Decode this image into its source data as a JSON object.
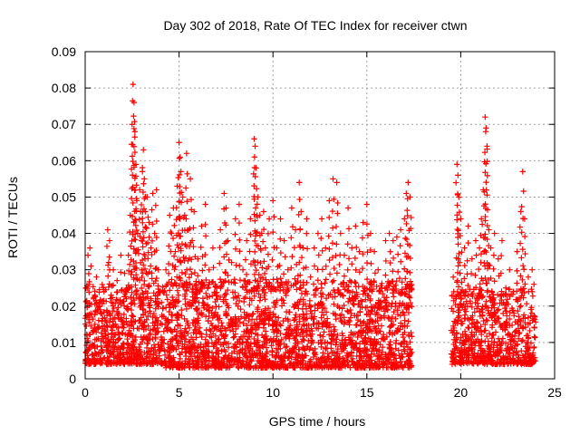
{
  "chart_data": {
    "type": "scatter",
    "title": "Day 302 of 2018, Rate Of TEC Index for receiver ctwn",
    "xlabel": "GPS time / hours",
    "ylabel": "ROTI / TECUs",
    "xlim": [
      0,
      25
    ],
    "ylim": [
      0,
      0.09
    ],
    "xticks": [
      0,
      5,
      10,
      15,
      20,
      25
    ],
    "xtick_labels": [
      "0",
      "5",
      "10",
      "15",
      "20",
      "25"
    ],
    "yticks": [
      0,
      0.01,
      0.02,
      0.03,
      0.04,
      0.05,
      0.06,
      0.07,
      0.08,
      0.09
    ],
    "ytick_labels": [
      "0",
      "0.01",
      "0.02",
      "0.03",
      "0.04",
      "0.05",
      "0.06",
      "0.07",
      "0.08",
      "0.09"
    ],
    "grid": true,
    "marker": "plus",
    "color": "#ff0000",
    "series": [
      {
        "points": [
          [
            0.05,
            0.025
          ],
          [
            0.1,
            0.012
          ],
          [
            0.15,
            0.034
          ],
          [
            0.2,
            0.026
          ],
          [
            0.25,
            0.036
          ],
          [
            0.3,
            0.018
          ],
          [
            0.35,
            0.009
          ],
          [
            0.45,
            0.022
          ],
          [
            0.5,
            0.014
          ],
          [
            0.6,
            0.028
          ],
          [
            0.7,
            0.011
          ],
          [
            0.8,
            0.019
          ],
          [
            0.9,
            0.008
          ],
          [
            1.0,
            0.024
          ],
          [
            1.1,
            0.016
          ],
          [
            1.2,
            0.041
          ],
          [
            1.25,
            0.032
          ],
          [
            1.3,
            0.038
          ],
          [
            1.4,
            0.021
          ],
          [
            1.5,
            0.03
          ],
          [
            1.6,
            0.012
          ],
          [
            1.7,
            0.027
          ],
          [
            1.8,
            0.018
          ],
          [
            1.9,
            0.034
          ],
          [
            2.0,
            0.015
          ],
          [
            2.1,
            0.029
          ],
          [
            2.2,
            0.022
          ],
          [
            2.3,
            0.034
          ],
          [
            2.4,
            0.045
          ],
          [
            2.5,
            0.07
          ],
          [
            2.55,
            0.081
          ],
          [
            2.6,
            0.076
          ],
          [
            2.65,
            0.068
          ],
          [
            2.7,
            0.059
          ],
          [
            2.75,
            0.049
          ],
          [
            2.8,
            0.04
          ],
          [
            2.9,
            0.052
          ],
          [
            3.0,
            0.038
          ],
          [
            3.05,
            0.057
          ],
          [
            3.1,
            0.063
          ],
          [
            3.15,
            0.055
          ],
          [
            3.2,
            0.046
          ],
          [
            3.3,
            0.05
          ],
          [
            3.4,
            0.043
          ],
          [
            3.5,
            0.036
          ],
          [
            3.6,
            0.051
          ],
          [
            3.7,
            0.04
          ],
          [
            3.8,
            0.052
          ],
          [
            3.9,
            0.03
          ],
          [
            4.0,
            0.024
          ],
          [
            4.1,
            0.015
          ],
          [
            4.3,
            0.03
          ],
          [
            4.5,
            0.045
          ],
          [
            4.6,
            0.04
          ],
          [
            4.7,
            0.047
          ],
          [
            4.8,
            0.035
          ],
          [
            4.9,
            0.053
          ],
          [
            5.0,
            0.065
          ],
          [
            5.05,
            0.061
          ],
          [
            5.1,
            0.057
          ],
          [
            5.2,
            0.05
          ],
          [
            5.3,
            0.045
          ],
          [
            5.4,
            0.062
          ],
          [
            5.5,
            0.041
          ],
          [
            5.6,
            0.055
          ],
          [
            5.7,
            0.038
          ],
          [
            5.8,
            0.046
          ],
          [
            6.0,
            0.033
          ],
          [
            6.2,
            0.042
          ],
          [
            6.4,
            0.048
          ],
          [
            6.6,
            0.03
          ],
          [
            6.8,
            0.036
          ],
          [
            7.0,
            0.025
          ],
          [
            7.2,
            0.041
          ],
          [
            7.4,
            0.051
          ],
          [
            7.5,
            0.047
          ],
          [
            7.6,
            0.038
          ],
          [
            7.8,
            0.032
          ],
          [
            8.0,
            0.044
          ],
          [
            8.2,
            0.048
          ],
          [
            8.4,
            0.03
          ],
          [
            8.6,
            0.038
          ],
          [
            8.8,
            0.044
          ],
          [
            9.0,
            0.066
          ],
          [
            9.05,
            0.064
          ],
          [
            9.1,
            0.058
          ],
          [
            9.2,
            0.05
          ],
          [
            9.3,
            0.045
          ],
          [
            9.4,
            0.04
          ],
          [
            9.5,
            0.046
          ],
          [
            9.6,
            0.036
          ],
          [
            9.8,
            0.044
          ],
          [
            10.0,
            0.049
          ],
          [
            10.2,
            0.036
          ],
          [
            10.4,
            0.044
          ],
          [
            10.6,
            0.038
          ],
          [
            10.8,
            0.03
          ],
          [
            11.0,
            0.047
          ],
          [
            11.2,
            0.041
          ],
          [
            11.4,
            0.054
          ],
          [
            11.5,
            0.046
          ],
          [
            11.6,
            0.036
          ],
          [
            11.8,
            0.044
          ],
          [
            12.0,
            0.028
          ],
          [
            12.2,
            0.036
          ],
          [
            12.4,
            0.04
          ],
          [
            12.6,
            0.044
          ],
          [
            12.8,
            0.036
          ],
          [
            13.0,
            0.049
          ],
          [
            13.2,
            0.055
          ],
          [
            13.4,
            0.054
          ],
          [
            13.6,
            0.04
          ],
          [
            13.8,
            0.034
          ],
          [
            14.0,
            0.047
          ],
          [
            14.2,
            0.036
          ],
          [
            14.4,
            0.042
          ],
          [
            14.6,
            0.035
          ],
          [
            14.8,
            0.043
          ],
          [
            15.0,
            0.048
          ],
          [
            15.2,
            0.04
          ],
          [
            15.4,
            0.035
          ],
          [
            15.6,
            0.03
          ],
          [
            15.8,
            0.025
          ],
          [
            16.0,
            0.038
          ],
          [
            16.2,
            0.04
          ],
          [
            16.4,
            0.038
          ],
          [
            16.6,
            0.039
          ],
          [
            16.8,
            0.041
          ],
          [
            17.0,
            0.044
          ],
          [
            17.1,
            0.051
          ],
          [
            17.2,
            0.054
          ],
          [
            17.3,
            0.05
          ],
          [
            19.6,
            0.028
          ],
          [
            19.8,
            0.059
          ],
          [
            19.85,
            0.056
          ],
          [
            19.9,
            0.05
          ],
          [
            20.0,
            0.044
          ],
          [
            20.2,
            0.036
          ],
          [
            20.4,
            0.042
          ],
          [
            20.6,
            0.033
          ],
          [
            20.8,
            0.038
          ],
          [
            21.0,
            0.036
          ],
          [
            21.1,
            0.044
          ],
          [
            21.2,
            0.052
          ],
          [
            21.3,
            0.072
          ],
          [
            21.35,
            0.069
          ],
          [
            21.4,
            0.064
          ],
          [
            21.5,
            0.041
          ],
          [
            21.6,
            0.036
          ],
          [
            21.8,
            0.04
          ],
          [
            22.0,
            0.033
          ],
          [
            22.2,
            0.038
          ],
          [
            22.4,
            0.025
          ],
          [
            22.6,
            0.03
          ],
          [
            22.8,
            0.024
          ],
          [
            23.0,
            0.035
          ],
          [
            23.2,
            0.046
          ],
          [
            23.3,
            0.057
          ],
          [
            23.4,
            0.044
          ],
          [
            23.6,
            0.028
          ],
          [
            23.8,
            0.03
          ],
          [
            23.9,
            0.026
          ]
        ]
      }
    ],
    "dense_bands": [
      {
        "x": [
          0.0,
          4.3
        ],
        "y": [
          0.004,
          0.026
        ]
      },
      {
        "x": [
          4.3,
          17.4
        ],
        "y": [
          0.003,
          0.027
        ]
      },
      {
        "x": [
          19.5,
          24.0
        ],
        "y": [
          0.004,
          0.025
        ]
      }
    ]
  }
}
